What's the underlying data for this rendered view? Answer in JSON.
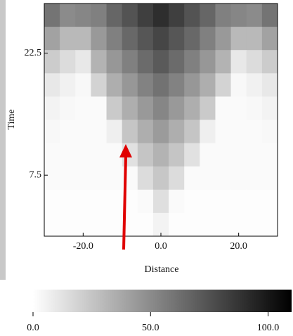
{
  "chart_data": {
    "type": "heatmap",
    "x_label": "Distance",
    "y_label": "Time",
    "xlim": [
      -30,
      30
    ],
    "ylim": [
      0,
      28.6
    ],
    "xticks": [
      {
        "value": -20,
        "label": "-20.0"
      },
      {
        "value": 0,
        "label": "0.0"
      },
      {
        "value": 20,
        "label": "20.0"
      }
    ],
    "yticks": [
      {
        "value": 7.5,
        "label": "7.5"
      },
      {
        "value": 22.5,
        "label": "22.5"
      }
    ],
    "z": [
      [
        60,
        50,
        52,
        55,
        66,
        74,
        83,
        90,
        83,
        74,
        66,
        55,
        52,
        50,
        60
      ],
      [
        40,
        30,
        30,
        44,
        55,
        65,
        73,
        80,
        73,
        65,
        55,
        44,
        30,
        30,
        40
      ],
      [
        22,
        15,
        10,
        33,
        45,
        55,
        64,
        71,
        64,
        55,
        45,
        33,
        10,
        15,
        22
      ],
      [
        10,
        6,
        3,
        19,
        35,
        45,
        54,
        61,
        54,
        45,
        35,
        19,
        3,
        6,
        10
      ],
      [
        5,
        3,
        2,
        2,
        23,
        35,
        44,
        52,
        44,
        35,
        23,
        2,
        2,
        3,
        5
      ],
      [
        3,
        2,
        2,
        2,
        7,
        25,
        35,
        43,
        35,
        25,
        7,
        2,
        2,
        2,
        3
      ],
      [
        2,
        2,
        2,
        2,
        2,
        13,
        25,
        33,
        25,
        13,
        2,
        2,
        2,
        2,
        2
      ],
      [
        2,
        2,
        2,
        2,
        2,
        2,
        15,
        24,
        15,
        2,
        2,
        2,
        2,
        2,
        2
      ],
      [
        1,
        1,
        1,
        1,
        1,
        1,
        2,
        14,
        2,
        1,
        1,
        1,
        1,
        1,
        1
      ],
      [
        1,
        1,
        1,
        1,
        1,
        1,
        1,
        5,
        1,
        1,
        1,
        1,
        1,
        1,
        1
      ]
    ],
    "colorbar": {
      "clim": [
        0,
        110
      ],
      "colors": [
        "#ffffff",
        "#000000"
      ],
      "ticks": [
        {
          "value": 0,
          "label": "0.0"
        },
        {
          "value": 50,
          "label": "50.0"
        },
        {
          "value": 100,
          "label": "100.0"
        }
      ]
    }
  }
}
